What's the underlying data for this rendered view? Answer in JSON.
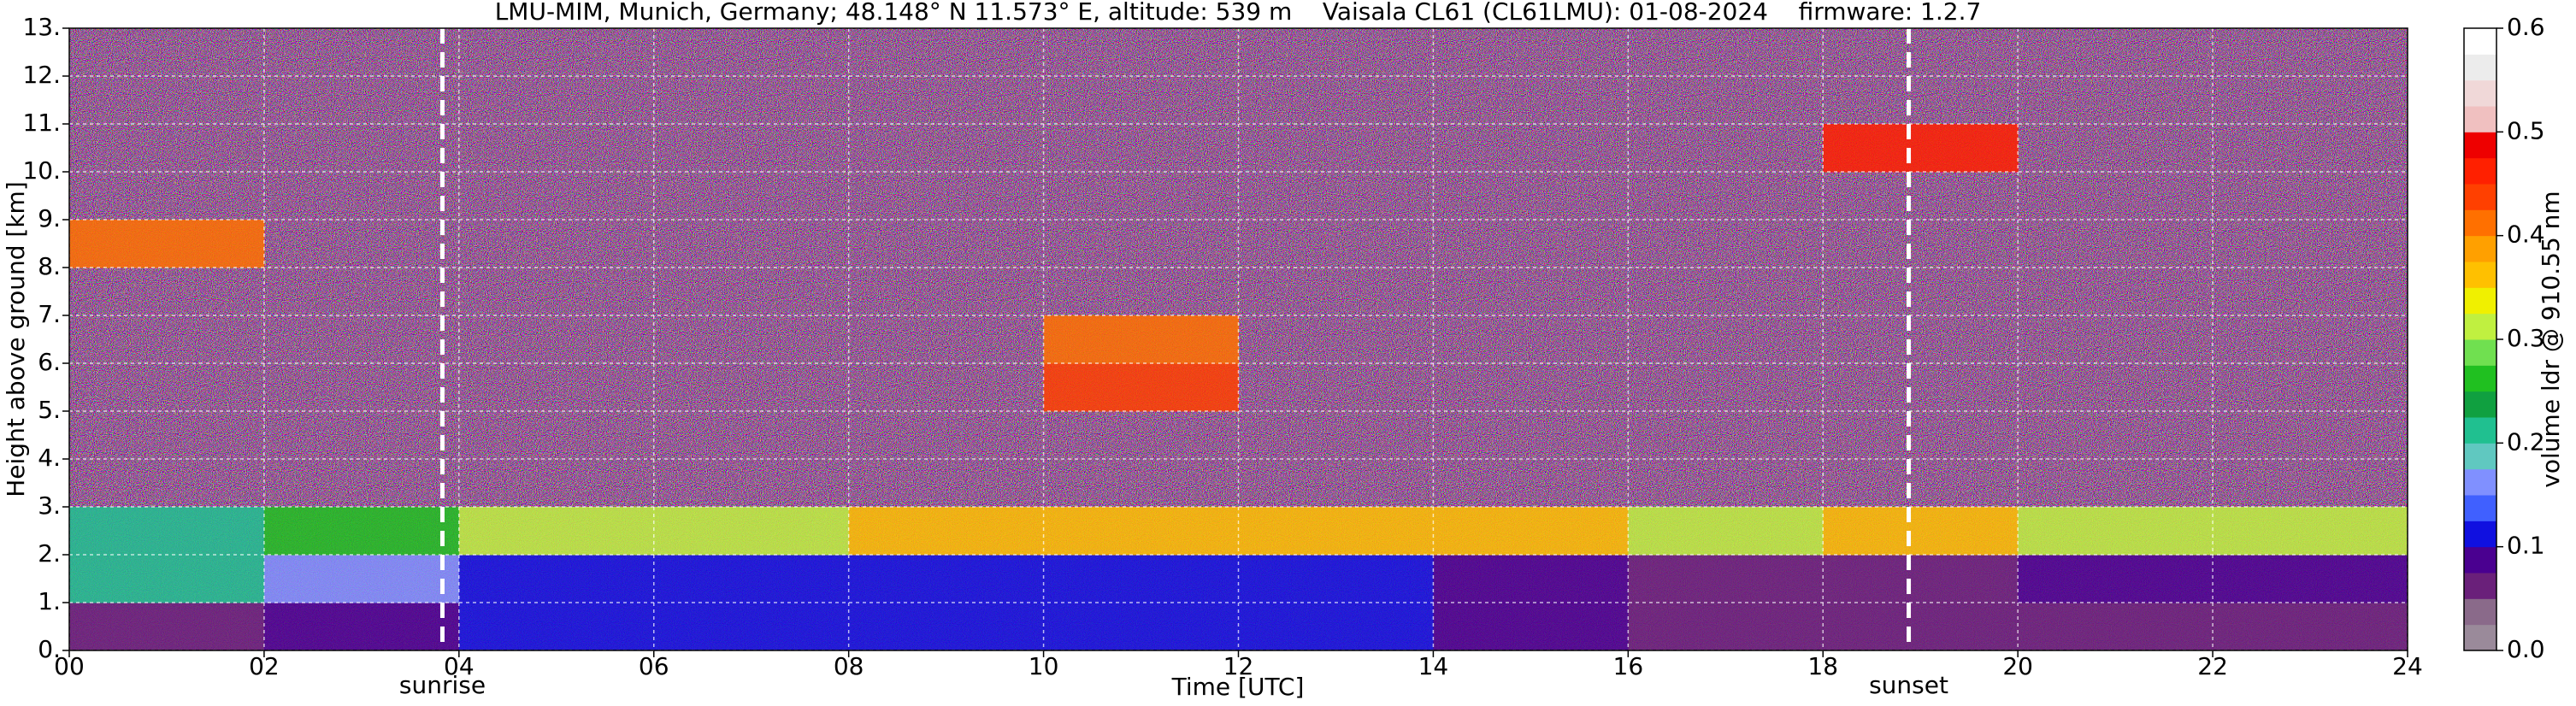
{
  "chart_data": {
    "type": "heatmap",
    "title": "LMU-MIM, Munich, Germany; 48.148° N 11.573° E, altitude: 539 m    Vaisala CL61 (CL61LMU): 01-08-2024    firmware: 1.2.7",
    "xlabel": "Time [UTC]",
    "ylabel": "Height above ground [km]",
    "xlim": [
      0,
      24
    ],
    "ylim": [
      0,
      13
    ],
    "xticks": [
      {
        "value": 0,
        "label": "00"
      },
      {
        "value": 2,
        "label": "02"
      },
      {
        "value": 4,
        "label": "04"
      },
      {
        "value": 6,
        "label": "06"
      },
      {
        "value": 8,
        "label": "08"
      },
      {
        "value": 10,
        "label": "10"
      },
      {
        "value": 12,
        "label": "12"
      },
      {
        "value": 14,
        "label": "14"
      },
      {
        "value": 16,
        "label": "16"
      },
      {
        "value": 18,
        "label": "18"
      },
      {
        "value": 20,
        "label": "20"
      },
      {
        "value": 22,
        "label": "22"
      },
      {
        "value": 24,
        "label": "24"
      }
    ],
    "yticks": [
      {
        "value": 0,
        "label": "0."
      },
      {
        "value": 1,
        "label": "1."
      },
      {
        "value": 2,
        "label": "2."
      },
      {
        "value": 3,
        "label": "3."
      },
      {
        "value": 4,
        "label": "4."
      },
      {
        "value": 5,
        "label": "5."
      },
      {
        "value": 6,
        "label": "6."
      },
      {
        "value": 7,
        "label": "7."
      },
      {
        "value": 8,
        "label": "8."
      },
      {
        "value": 9,
        "label": "9."
      },
      {
        "value": 10,
        "label": "10."
      },
      {
        "value": 11,
        "label": "11."
      },
      {
        "value": 12,
        "label": "12."
      },
      {
        "value": 13,
        "label": "13."
      }
    ],
    "grid": true,
    "xbins": [
      0,
      2,
      4,
      6,
      8,
      10,
      12,
      14,
      16,
      18,
      20,
      22,
      24
    ],
    "ybins": [
      0,
      1,
      2,
      3,
      4,
      5,
      6,
      7,
      8,
      9,
      10,
      11,
      12,
      13
    ],
    "z": [
      [
        0.05,
        0.075,
        0.1,
        0.1,
        0.1,
        0.1,
        0.1,
        0.075,
        0.05,
        0.05,
        0.05,
        0.05
      ],
      [
        0.2,
        0.15,
        0.1,
        0.1,
        0.1,
        0.1,
        0.1,
        0.075,
        0.05,
        0.05,
        0.075,
        0.075
      ],
      [
        0.2,
        0.25,
        0.3,
        0.3,
        0.35,
        0.35,
        0.35,
        0.35,
        0.3,
        0.35,
        0.3,
        0.3
      ],
      [
        null,
        null,
        null,
        null,
        null,
        null,
        null,
        null,
        null,
        null,
        null,
        null
      ],
      [
        null,
        null,
        null,
        null,
        null,
        null,
        null,
        null,
        null,
        null,
        null,
        null
      ],
      [
        null,
        null,
        null,
        null,
        null,
        0.425,
        null,
        null,
        null,
        null,
        null,
        null
      ],
      [
        null,
        null,
        null,
        null,
        null,
        0.4,
        null,
        null,
        null,
        null,
        null,
        null
      ],
      [
        null,
        null,
        null,
        null,
        null,
        null,
        null,
        null,
        null,
        null,
        null,
        null
      ],
      [
        0.4,
        null,
        null,
        null,
        null,
        null,
        null,
        null,
        null,
        null,
        null,
        null
      ],
      [
        null,
        null,
        null,
        null,
        null,
        null,
        null,
        null,
        null,
        null,
        null,
        null
      ],
      [
        null,
        null,
        null,
        null,
        null,
        null,
        null,
        null,
        null,
        0.45,
        null,
        null
      ],
      [
        null,
        null,
        null,
        null,
        null,
        null,
        null,
        null,
        null,
        null,
        null,
        null
      ],
      [
        null,
        null,
        null,
        null,
        null,
        null,
        null,
        null,
        null,
        null,
        null,
        null
      ]
    ],
    "annotations": [
      {
        "label": "sunrise",
        "x": 3.83
      },
      {
        "label": "sunset",
        "x": 18.88
      }
    ],
    "colorbar": {
      "label": "volume ldr @ 910.55 nm",
      "clim": [
        0,
        0.6
      ],
      "ticks": [
        {
          "value": 0,
          "label": "0.0"
        },
        {
          "value": 0.1,
          "label": "0.1"
        },
        {
          "value": 0.2,
          "label": "0.2"
        },
        {
          "value": 0.3,
          "label": "0.3"
        },
        {
          "value": 0.4,
          "label": "0.4"
        },
        {
          "value": 0.5,
          "label": "0.5"
        },
        {
          "value": 0.6,
          "label": "0.6"
        }
      ],
      "colors": [
        "#9a8a9a",
        "#8a6a8a",
        "#6a207a",
        "#4a0090",
        "#1010e0",
        "#4060ff",
        "#8090ff",
        "#60c8c0",
        "#20c090",
        "#10a040",
        "#20c020",
        "#70e050",
        "#c0f040",
        "#f0f000",
        "#ffc000",
        "#ffa000",
        "#ff7000",
        "#ff4000",
        "#ff2000",
        "#ee0000",
        "#f0c0c0",
        "#f0d8d8",
        "#ececec",
        "#ffffff"
      ]
    }
  }
}
